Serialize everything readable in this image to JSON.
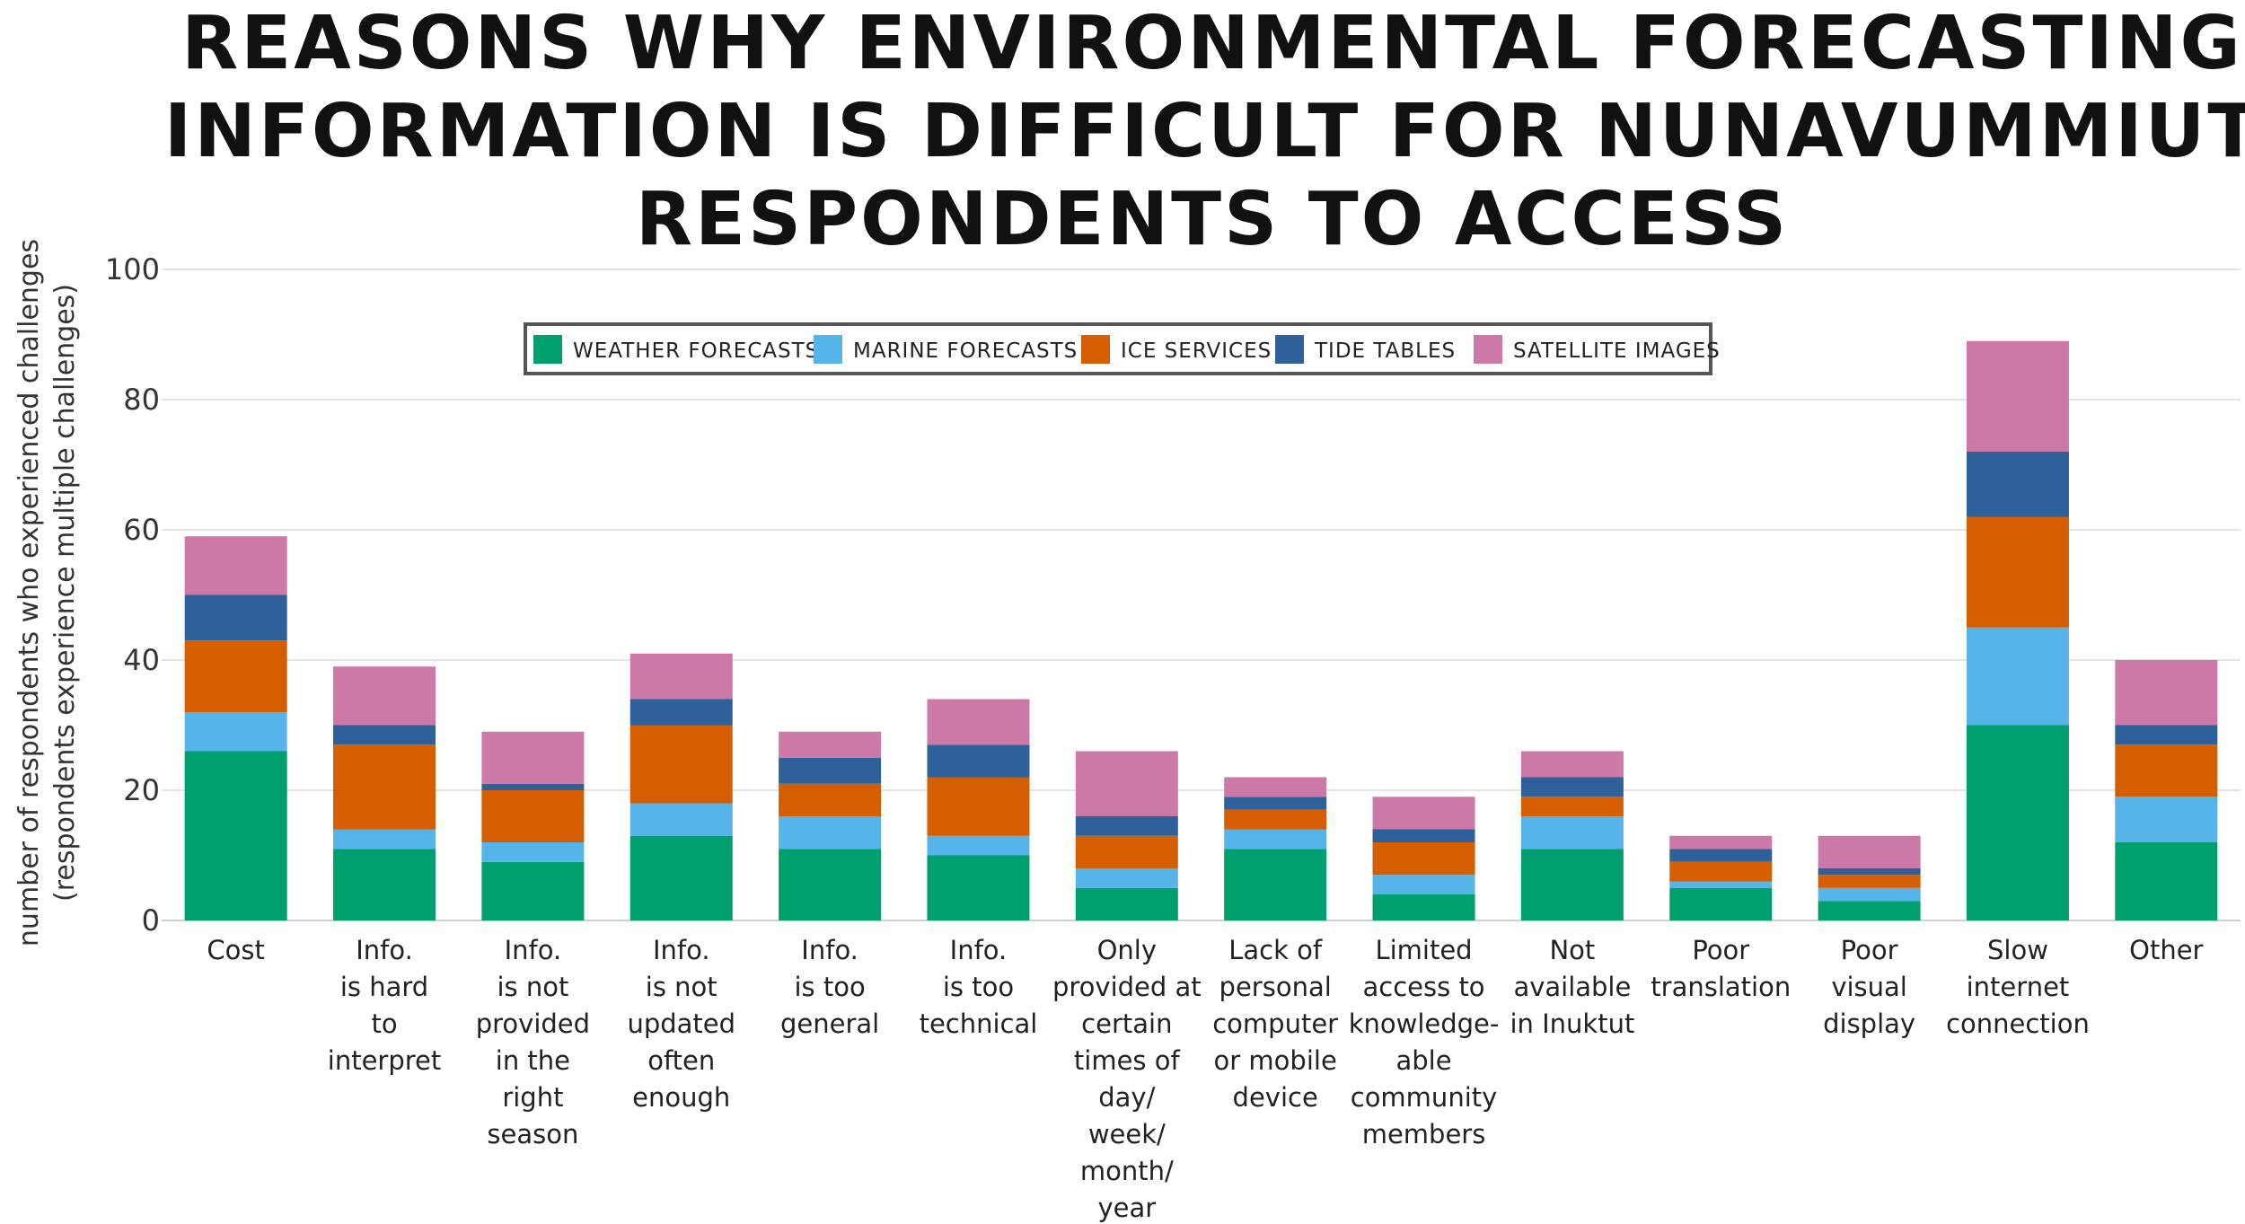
{
  "chart_data": {
    "type": "bar",
    "stacked": true,
    "title": "REASONS WHY ENVIRONMENTAL FORECASTING\nINFORMATION IS DIFFICULT FOR NUNAVUMMIUT\nRESPONDENTS TO ACCESS",
    "ylabel_lines": [
      "number of respondents who experienced challenges",
      "(respondents experience multiple challenges)"
    ],
    "ylim": [
      0,
      100
    ],
    "yticks": [
      0,
      20,
      40,
      60,
      80,
      100
    ],
    "grid": true,
    "legend_position": "top",
    "categories": [
      [
        "Cost"
      ],
      [
        "Info.",
        "is hard",
        "to",
        "interpret"
      ],
      [
        "Info.",
        "is not",
        "provided",
        "in the",
        "right",
        "season"
      ],
      [
        "Info.",
        "is not",
        "updated",
        "often",
        "enough"
      ],
      [
        "Info.",
        "is too",
        "general"
      ],
      [
        "Info.",
        "is too",
        "technical"
      ],
      [
        "Only",
        "provided at",
        "certain",
        "times of",
        "day/",
        "week/",
        "month/",
        "year"
      ],
      [
        "Lack of",
        "personal",
        "computer",
        "or  mobile",
        "device"
      ],
      [
        "Limited",
        "access to",
        "knowledge-",
        "able",
        "community",
        "members"
      ],
      [
        "Not",
        "available",
        "in Inuktut"
      ],
      [
        "Poor",
        "translation"
      ],
      [
        "Poor",
        "visual",
        "display"
      ],
      [
        "Slow",
        "internet",
        "connection"
      ],
      [
        "Other"
      ]
    ],
    "series": [
      {
        "name": "WEATHER FORECASTS",
        "color": "#00a06e",
        "values": [
          26,
          11,
          9,
          13,
          11,
          10,
          5,
          11,
          4,
          11,
          5,
          3,
          30,
          12
        ]
      },
      {
        "name": "MARINE FORECASTS",
        "color": "#56b4e9",
        "values": [
          6,
          3,
          3,
          5,
          5,
          3,
          3,
          3,
          3,
          5,
          1,
          2,
          15,
          7
        ]
      },
      {
        "name": "ICE SERVICES",
        "color": "#d55e00",
        "values": [
          11,
          13,
          8,
          12,
          5,
          9,
          5,
          3,
          5,
          3,
          3,
          2,
          17,
          8
        ]
      },
      {
        "name": "TIDE TABLES",
        "color": "#2e6099",
        "values": [
          7,
          3,
          1,
          4,
          4,
          5,
          3,
          2,
          2,
          3,
          2,
          1,
          10,
          3
        ]
      },
      {
        "name": "SATELLITE IMAGES",
        "color": "#cc79a7",
        "values": [
          9,
          9,
          8,
          7,
          4,
          7,
          10,
          3,
          5,
          4,
          2,
          5,
          17,
          10
        ]
      }
    ]
  }
}
